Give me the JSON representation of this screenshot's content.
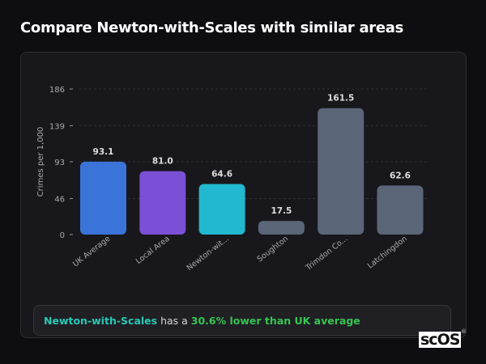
{
  "title": "Compare Newton-with-Scales with similar areas",
  "chart_data": {
    "type": "bar",
    "categories": [
      "UK Average",
      "Local Area",
      "Newton-wit...",
      "Soughton",
      "Trimdon Co...",
      "Latchingdon"
    ],
    "values": [
      93.1,
      81.0,
      64.6,
      17.5,
      161.5,
      62.6
    ],
    "data_labels": [
      "93.1",
      "81.0",
      "64.6",
      "17.5",
      "161.5",
      "62.6"
    ],
    "colors": [
      "#3b74d9",
      "#7b4fd6",
      "#22b8cf",
      "#5a6678",
      "#5a6678",
      "#5a6678"
    ],
    "ylabel": "Crimes per 1,000",
    "yticks": [
      0,
      46,
      93,
      139,
      186
    ],
    "ylim": [
      0,
      186
    ],
    "grid": true,
    "xlabel": ""
  },
  "info": {
    "area": "Newton-with-Scales",
    "middle": " has a ",
    "comparison": "30.6% lower than UK average"
  },
  "watermark": "scOS"
}
